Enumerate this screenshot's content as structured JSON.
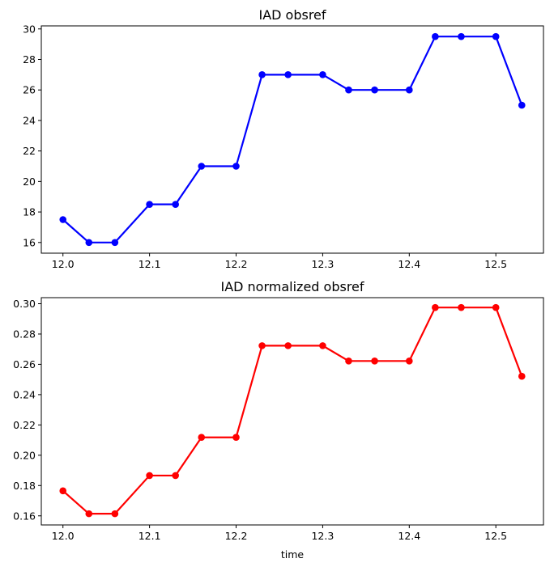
{
  "chart_data": [
    {
      "type": "line",
      "title": "IAD obsref",
      "xlabel": "",
      "ylabel": "",
      "x": [
        12.0,
        12.03,
        12.06,
        12.1,
        12.13,
        12.16,
        12.2,
        12.23,
        12.26,
        12.3,
        12.33,
        12.36,
        12.4,
        12.43,
        12.46,
        12.5,
        12.53
      ],
      "series": [
        {
          "values": [
            17.5,
            16.0,
            16.0,
            18.5,
            18.5,
            21.0,
            21.0,
            27.0,
            27.0,
            27.0,
            26.0,
            26.0,
            26.0,
            29.5,
            29.5,
            29.5,
            25.0
          ],
          "color": "#0000ff"
        }
      ],
      "xlim": [
        11.975,
        12.555
      ],
      "ylim": [
        15.3,
        30.2
      ],
      "xticks": [
        "12.0",
        "12.1",
        "12.2",
        "12.3",
        "12.4",
        "12.5"
      ],
      "yticks": [
        "16",
        "18",
        "20",
        "22",
        "24",
        "26",
        "28",
        "30"
      ],
      "grid": false,
      "legend": "none"
    },
    {
      "type": "line",
      "title": "IAD normalized obsref",
      "xlabel": "time",
      "ylabel": "",
      "x": [
        12.0,
        12.03,
        12.06,
        12.1,
        12.13,
        12.16,
        12.2,
        12.23,
        12.26,
        12.3,
        12.33,
        12.36,
        12.4,
        12.43,
        12.46,
        12.5,
        12.53
      ],
      "series": [
        {
          "values": [
            0.1765,
            0.1614,
            0.1614,
            0.1866,
            0.1866,
            0.2118,
            0.2118,
            0.2723,
            0.2723,
            0.2723,
            0.2622,
            0.2622,
            0.2622,
            0.2975,
            0.2975,
            0.2975,
            0.2521
          ],
          "color": "#ff0000"
        }
      ],
      "xlim": [
        11.975,
        12.555
      ],
      "ylim": [
        0.154,
        0.304
      ],
      "xticks": [
        "12.0",
        "12.1",
        "12.2",
        "12.3",
        "12.4",
        "12.5"
      ],
      "yticks": [
        "0.16",
        "0.18",
        "0.20",
        "0.22",
        "0.24",
        "0.26",
        "0.28",
        "0.30"
      ],
      "grid": false,
      "legend": "none"
    }
  ]
}
